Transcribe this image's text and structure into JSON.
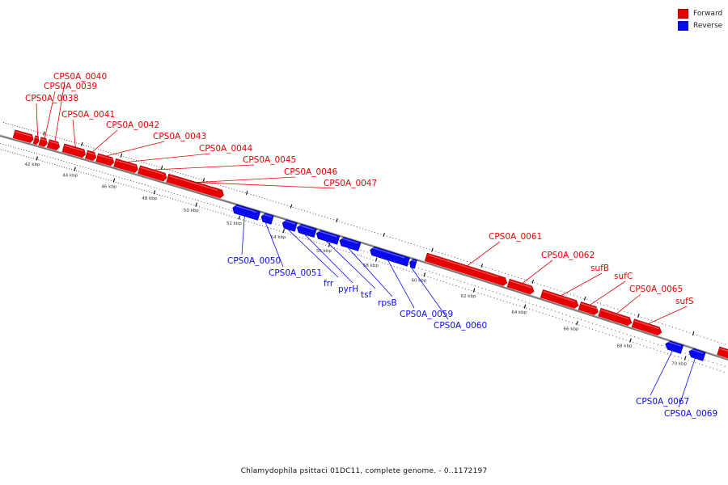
{
  "colors": {
    "forward": "#e60000",
    "reverse": "#0a0aee",
    "backbone": "#777777"
  },
  "legend": {
    "forward": "Forward",
    "reverse": "Reverse"
  },
  "caption": "Chlamydophila psittaci 01DC11, complete genome. - 0..1172197",
  "ticks": [
    {
      "kbp": 42,
      "label": "42 kbp"
    },
    {
      "kbp": 44,
      "label": "44 kbp"
    },
    {
      "kbp": 46,
      "label": "46 kbp"
    },
    {
      "kbp": 48,
      "label": "48 kbp"
    },
    {
      "kbp": 50,
      "label": "50 kbp"
    },
    {
      "kbp": 52,
      "label": "52 kbp"
    },
    {
      "kbp": 54,
      "label": "54 kbp"
    },
    {
      "kbp": 56,
      "label": "56 kbp"
    },
    {
      "kbp": 58,
      "label": "58 kbp"
    },
    {
      "kbp": 60,
      "label": "60 kbp"
    },
    {
      "kbp": 62,
      "label": "62 kbp"
    },
    {
      "kbp": 64,
      "label": "64 kbp"
    },
    {
      "kbp": 66,
      "label": "66 kbp"
    },
    {
      "kbp": 68,
      "label": "68 kbp"
    },
    {
      "kbp": 70,
      "label": "70 kbp"
    }
  ],
  "genes": [
    {
      "name": "",
      "strand": "forward",
      "start_kbp": 40.5,
      "end_kbp": 41.55
    },
    {
      "name": "CPS0A_0038",
      "strand": "forward",
      "start_kbp": 41.6,
      "end_kbp": 41.85
    },
    {
      "name": "CPS0A_0039",
      "strand": "forward",
      "start_kbp": 41.9,
      "end_kbp": 42.3
    },
    {
      "name": "CPS0A_0040",
      "strand": "forward",
      "start_kbp": 42.35,
      "end_kbp": 42.95
    },
    {
      "name": "CPS0A_0041",
      "strand": "forward",
      "start_kbp": 43.15,
      "end_kbp": 44.3
    },
    {
      "name": "CPS0A_0042",
      "strand": "forward",
      "start_kbp": 44.35,
      "end_kbp": 44.85
    },
    {
      "name": "CPS0A_0043",
      "strand": "forward",
      "start_kbp": 44.9,
      "end_kbp": 45.75
    },
    {
      "name": "CPS0A_0044",
      "strand": "forward",
      "start_kbp": 45.8,
      "end_kbp": 46.95
    },
    {
      "name": "CPS0A_0045",
      "strand": "forward",
      "start_kbp": 47.0,
      "end_kbp": 48.35
    },
    {
      "name": "CPS0A_0046",
      "strand": "forward",
      "start_kbp": 48.4,
      "end_kbp": 51.05
    },
    {
      "name": "CPS0A_0047",
      "strand": "forward",
      "start_kbp": 48.4,
      "end_kbp": 51.05
    },
    {
      "name": "CPS0A_0050",
      "strand": "reverse",
      "start_kbp": 51.6,
      "end_kbp": 52.8
    },
    {
      "name": "CPS0A_0051",
      "strand": "reverse",
      "start_kbp": 52.9,
      "end_kbp": 53.4
    },
    {
      "name": "frr",
      "strand": "reverse",
      "start_kbp": 53.85,
      "end_kbp": 54.45
    },
    {
      "name": "pyrH",
      "strand": "reverse",
      "start_kbp": 54.5,
      "end_kbp": 55.3
    },
    {
      "name": "tsf",
      "strand": "reverse",
      "start_kbp": 55.35,
      "end_kbp": 56.3
    },
    {
      "name": "rpsB",
      "strand": "reverse",
      "start_kbp": 56.35,
      "end_kbp": 57.2
    },
    {
      "name": "CPS0A_0059",
      "strand": "reverse",
      "start_kbp": 57.65,
      "end_kbp": 59.25
    },
    {
      "name": "CPS0A_0060",
      "strand": "reverse",
      "start_kbp": 59.3,
      "end_kbp": 59.55
    },
    {
      "name": "CPS0A_0061",
      "strand": "forward",
      "start_kbp": 59.85,
      "end_kbp": 63.1
    },
    {
      "name": "CPS0A_0062",
      "strand": "forward",
      "start_kbp": 63.15,
      "end_kbp": 64.15
    },
    {
      "name": "sufB",
      "strand": "forward",
      "start_kbp": 64.45,
      "end_kbp": 65.85
    },
    {
      "name": "sufC",
      "strand": "forward",
      "start_kbp": 65.9,
      "end_kbp": 66.6
    },
    {
      "name": "CPS0A_0065",
      "strand": "forward",
      "start_kbp": 66.65,
      "end_kbp": 67.85
    },
    {
      "name": "sufS",
      "strand": "forward",
      "start_kbp": 67.9,
      "end_kbp": 68.95
    },
    {
      "name": "CPS0A_0067",
      "strand": "reverse",
      "start_kbp": 69.2,
      "end_kbp": 69.8
    },
    {
      "name": "CPS0A_0069",
      "strand": "reverse",
      "start_kbp": 70.05,
      "end_kbp": 70.6
    },
    {
      "name": "",
      "strand": "forward",
      "start_kbp": 71.0,
      "end_kbp": 71.5
    }
  ]
}
